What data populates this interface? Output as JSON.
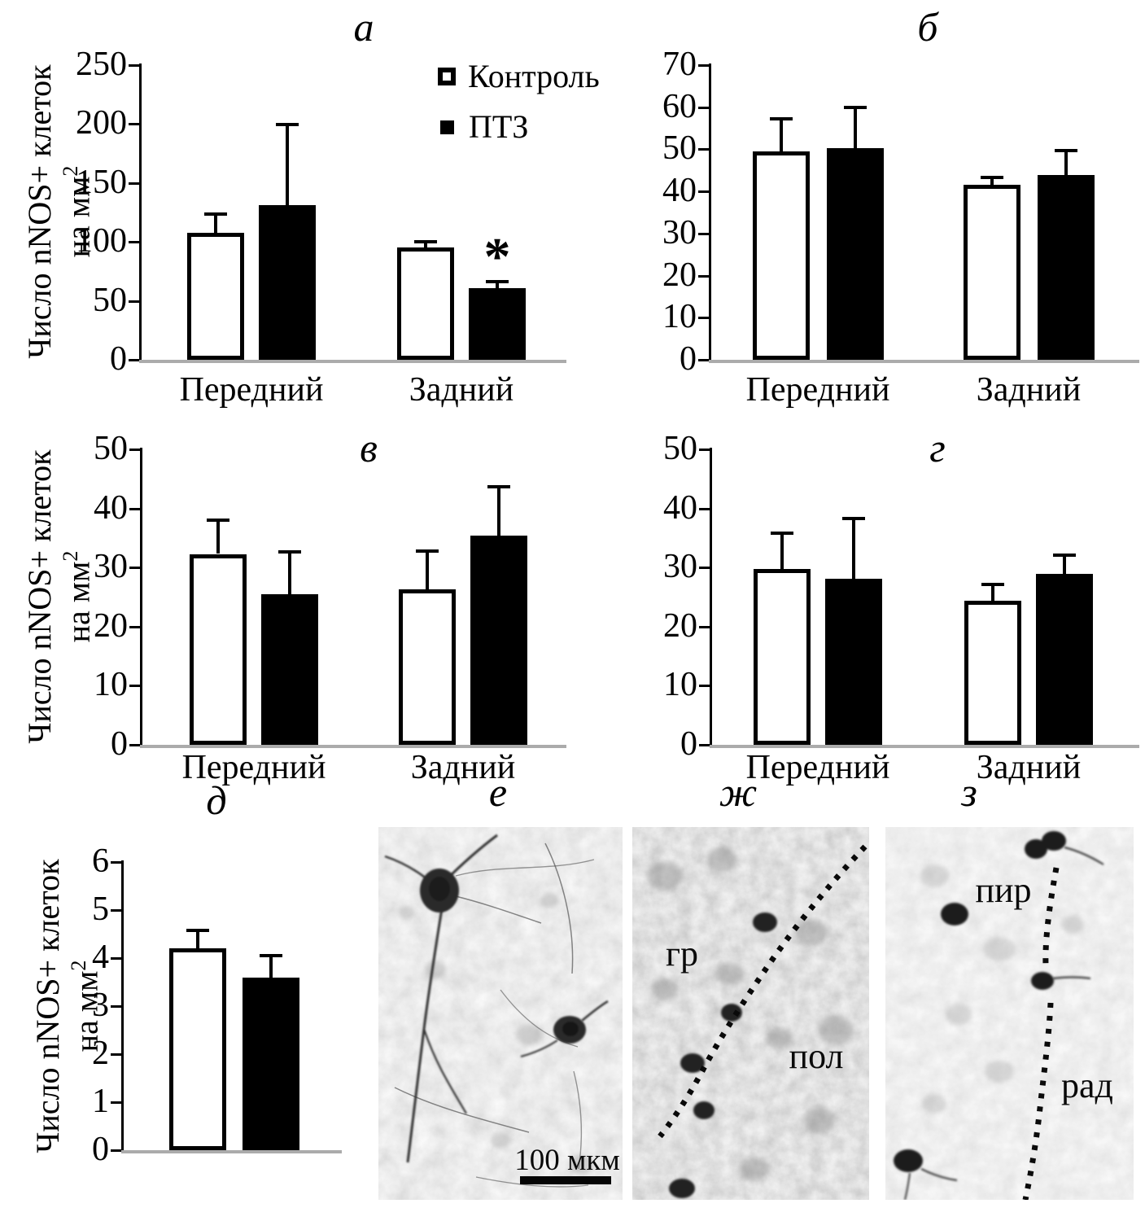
{
  "axis_label": {
    "line1": "Число nNOS+ клеток",
    "line2": "на мм",
    "sup": "2"
  },
  "legend": {
    "items": [
      {
        "label": "Контроль",
        "swatch": "open",
        "fill": "#ffffff"
      },
      {
        "label": "ПТЗ",
        "swatch": "filled",
        "fill": "#000000"
      }
    ]
  },
  "chart_data": [
    {
      "id": "a",
      "title": "а",
      "type": "bar",
      "categories": [
        "Передний",
        "Задний"
      ],
      "series": [
        {
          "name": "Контроль",
          "fill": "#ffffff",
          "values": [
            108,
            95
          ],
          "errors": [
            16,
            6
          ]
        },
        {
          "name": "ПТЗ",
          "fill": "#000000",
          "values": [
            131,
            61
          ],
          "errors": [
            69,
            6
          ]
        }
      ],
      "ylim": [
        0,
        250
      ],
      "ytick_step": 50,
      "grid": false,
      "ylabel": "Число nNOS+ клеток на мм2",
      "annotations": [
        {
          "text": "*",
          "series": 1,
          "category": 1
        }
      ]
    },
    {
      "id": "b",
      "title": "б",
      "type": "bar",
      "categories": [
        "Передний",
        "Задний"
      ],
      "series": [
        {
          "name": "Контроль",
          "fill": "#ffffff",
          "values": [
            49.5,
            41.5
          ],
          "errors": [
            8,
            2.1
          ]
        },
        {
          "name": "ПТЗ",
          "fill": "#000000",
          "values": [
            50.2,
            43.8
          ],
          "errors": [
            10,
            6
          ]
        }
      ],
      "ylim": [
        0,
        70
      ],
      "ytick_step": 10,
      "grid": false,
      "ylabel": "Число nNOS+ клеток на мм2",
      "annotations": []
    },
    {
      "id": "v",
      "title": "в",
      "type": "bar",
      "categories": [
        "Передний",
        "Задний"
      ],
      "series": [
        {
          "name": "Контроль",
          "fill": "#ffffff",
          "values": [
            32.3,
            26.3
          ],
          "errors": [
            5.9,
            6.6
          ]
        },
        {
          "name": "ПТЗ",
          "fill": "#000000",
          "values": [
            25.5,
            35.4
          ],
          "errors": [
            7.3,
            8.4
          ]
        }
      ],
      "ylim": [
        0,
        50
      ],
      "ytick_step": 10,
      "grid": false,
      "ylabel": "Число nNOS+ клеток на мм2",
      "annotations": []
    },
    {
      "id": "g",
      "title": "г",
      "type": "bar",
      "categories": [
        "Передний",
        "Задний"
      ],
      "series": [
        {
          "name": "Контроль",
          "fill": "#ffffff",
          "values": [
            29.8,
            24.4
          ],
          "errors": [
            6.2,
            2.9
          ]
        },
        {
          "name": "ПТЗ",
          "fill": "#000000",
          "values": [
            28.1,
            28.9
          ],
          "errors": [
            10.3,
            3.3
          ]
        }
      ],
      "ylim": [
        0,
        50
      ],
      "ytick_step": 10,
      "grid": false,
      "ylabel": "Число nNOS+ клеток на мм2",
      "annotations": []
    },
    {
      "id": "d",
      "title": "д",
      "type": "bar",
      "categories": [
        ""
      ],
      "series": [
        {
          "name": "Контроль",
          "fill": "#ffffff",
          "values": [
            4.2
          ],
          "errors": [
            0.4
          ]
        },
        {
          "name": "ПТЗ",
          "fill": "#000000",
          "values": [
            3.6
          ],
          "errors": [
            0.46
          ]
        }
      ],
      "ylim": [
        0,
        6
      ],
      "ytick_step": 1,
      "grid": false,
      "ylabel": "Число nNOS+ клеток на мм2",
      "annotations": []
    }
  ],
  "micrographs": [
    {
      "id": "e",
      "title": "е",
      "scale_bar_label": "100 мкм",
      "region_labels": []
    },
    {
      "id": "zh",
      "title": "ж",
      "region_labels": [
        {
          "text": "гр"
        },
        {
          "text": "пол"
        }
      ]
    },
    {
      "id": "z",
      "title": "з",
      "region_labels": [
        {
          "text": "пир"
        },
        {
          "text": "рад"
        }
      ]
    }
  ]
}
